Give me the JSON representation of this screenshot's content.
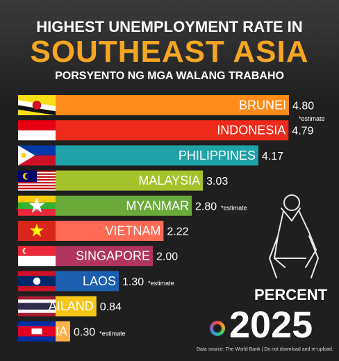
{
  "header": {
    "title_line1": "HIGHEST UNEMPLOYMENT RATE IN",
    "title_line2": "SOUTHEAST ASIA",
    "subtitle": "PORSYENTO NG MGA WALANG TRABAHO"
  },
  "footer": {
    "unit": "PERCENT",
    "year": "2025",
    "source": "Data source: The World Bank  |  Do not download and re-upload."
  },
  "chart_data": {
    "type": "bar",
    "orientation": "horizontal",
    "xlim": [
      0,
      4.8
    ],
    "grid": false,
    "categories": [
      "BRUNEI",
      "INDONESIA",
      "PHILIPPINES",
      "MALAYSIA",
      "MYANMAR",
      "VIETNAM",
      "SINGAPORE",
      "LAOS",
      "AILAND",
      "IA"
    ],
    "values": [
      4.8,
      4.79,
      4.17,
      3.03,
      2.8,
      2.22,
      2.0,
      1.3,
      0.84,
      0.3
    ],
    "value_labels": [
      "4.80",
      "4.79",
      "4.17",
      "3.03",
      "2.80",
      "2.22",
      "2.00",
      "1.30",
      "0.84",
      "0.30"
    ],
    "notes": [
      "*estimate",
      "",
      "",
      "",
      "*estimate",
      "",
      "",
      "*estimate",
      "",
      "*estimate"
    ],
    "bar_colors": [
      "#ff8c1a",
      "#f02a1a",
      "#1fa3a8",
      "#a3c22b",
      "#6aaa3a",
      "#ff6a55",
      "#b0345f",
      "#1c5fb0",
      "#f5c518",
      "#ffb347"
    ],
    "flag_icons": [
      "brunei-flag-icon",
      "indonesia-flag-icon",
      "philippines-flag-icon",
      "malaysia-flag-icon",
      "myanmar-flag-icon",
      "vietnam-flag-icon",
      "singapore-flag-icon",
      "laos-flag-icon",
      "thailand-flag-icon",
      "cambodia-flag-icon"
    ]
  }
}
